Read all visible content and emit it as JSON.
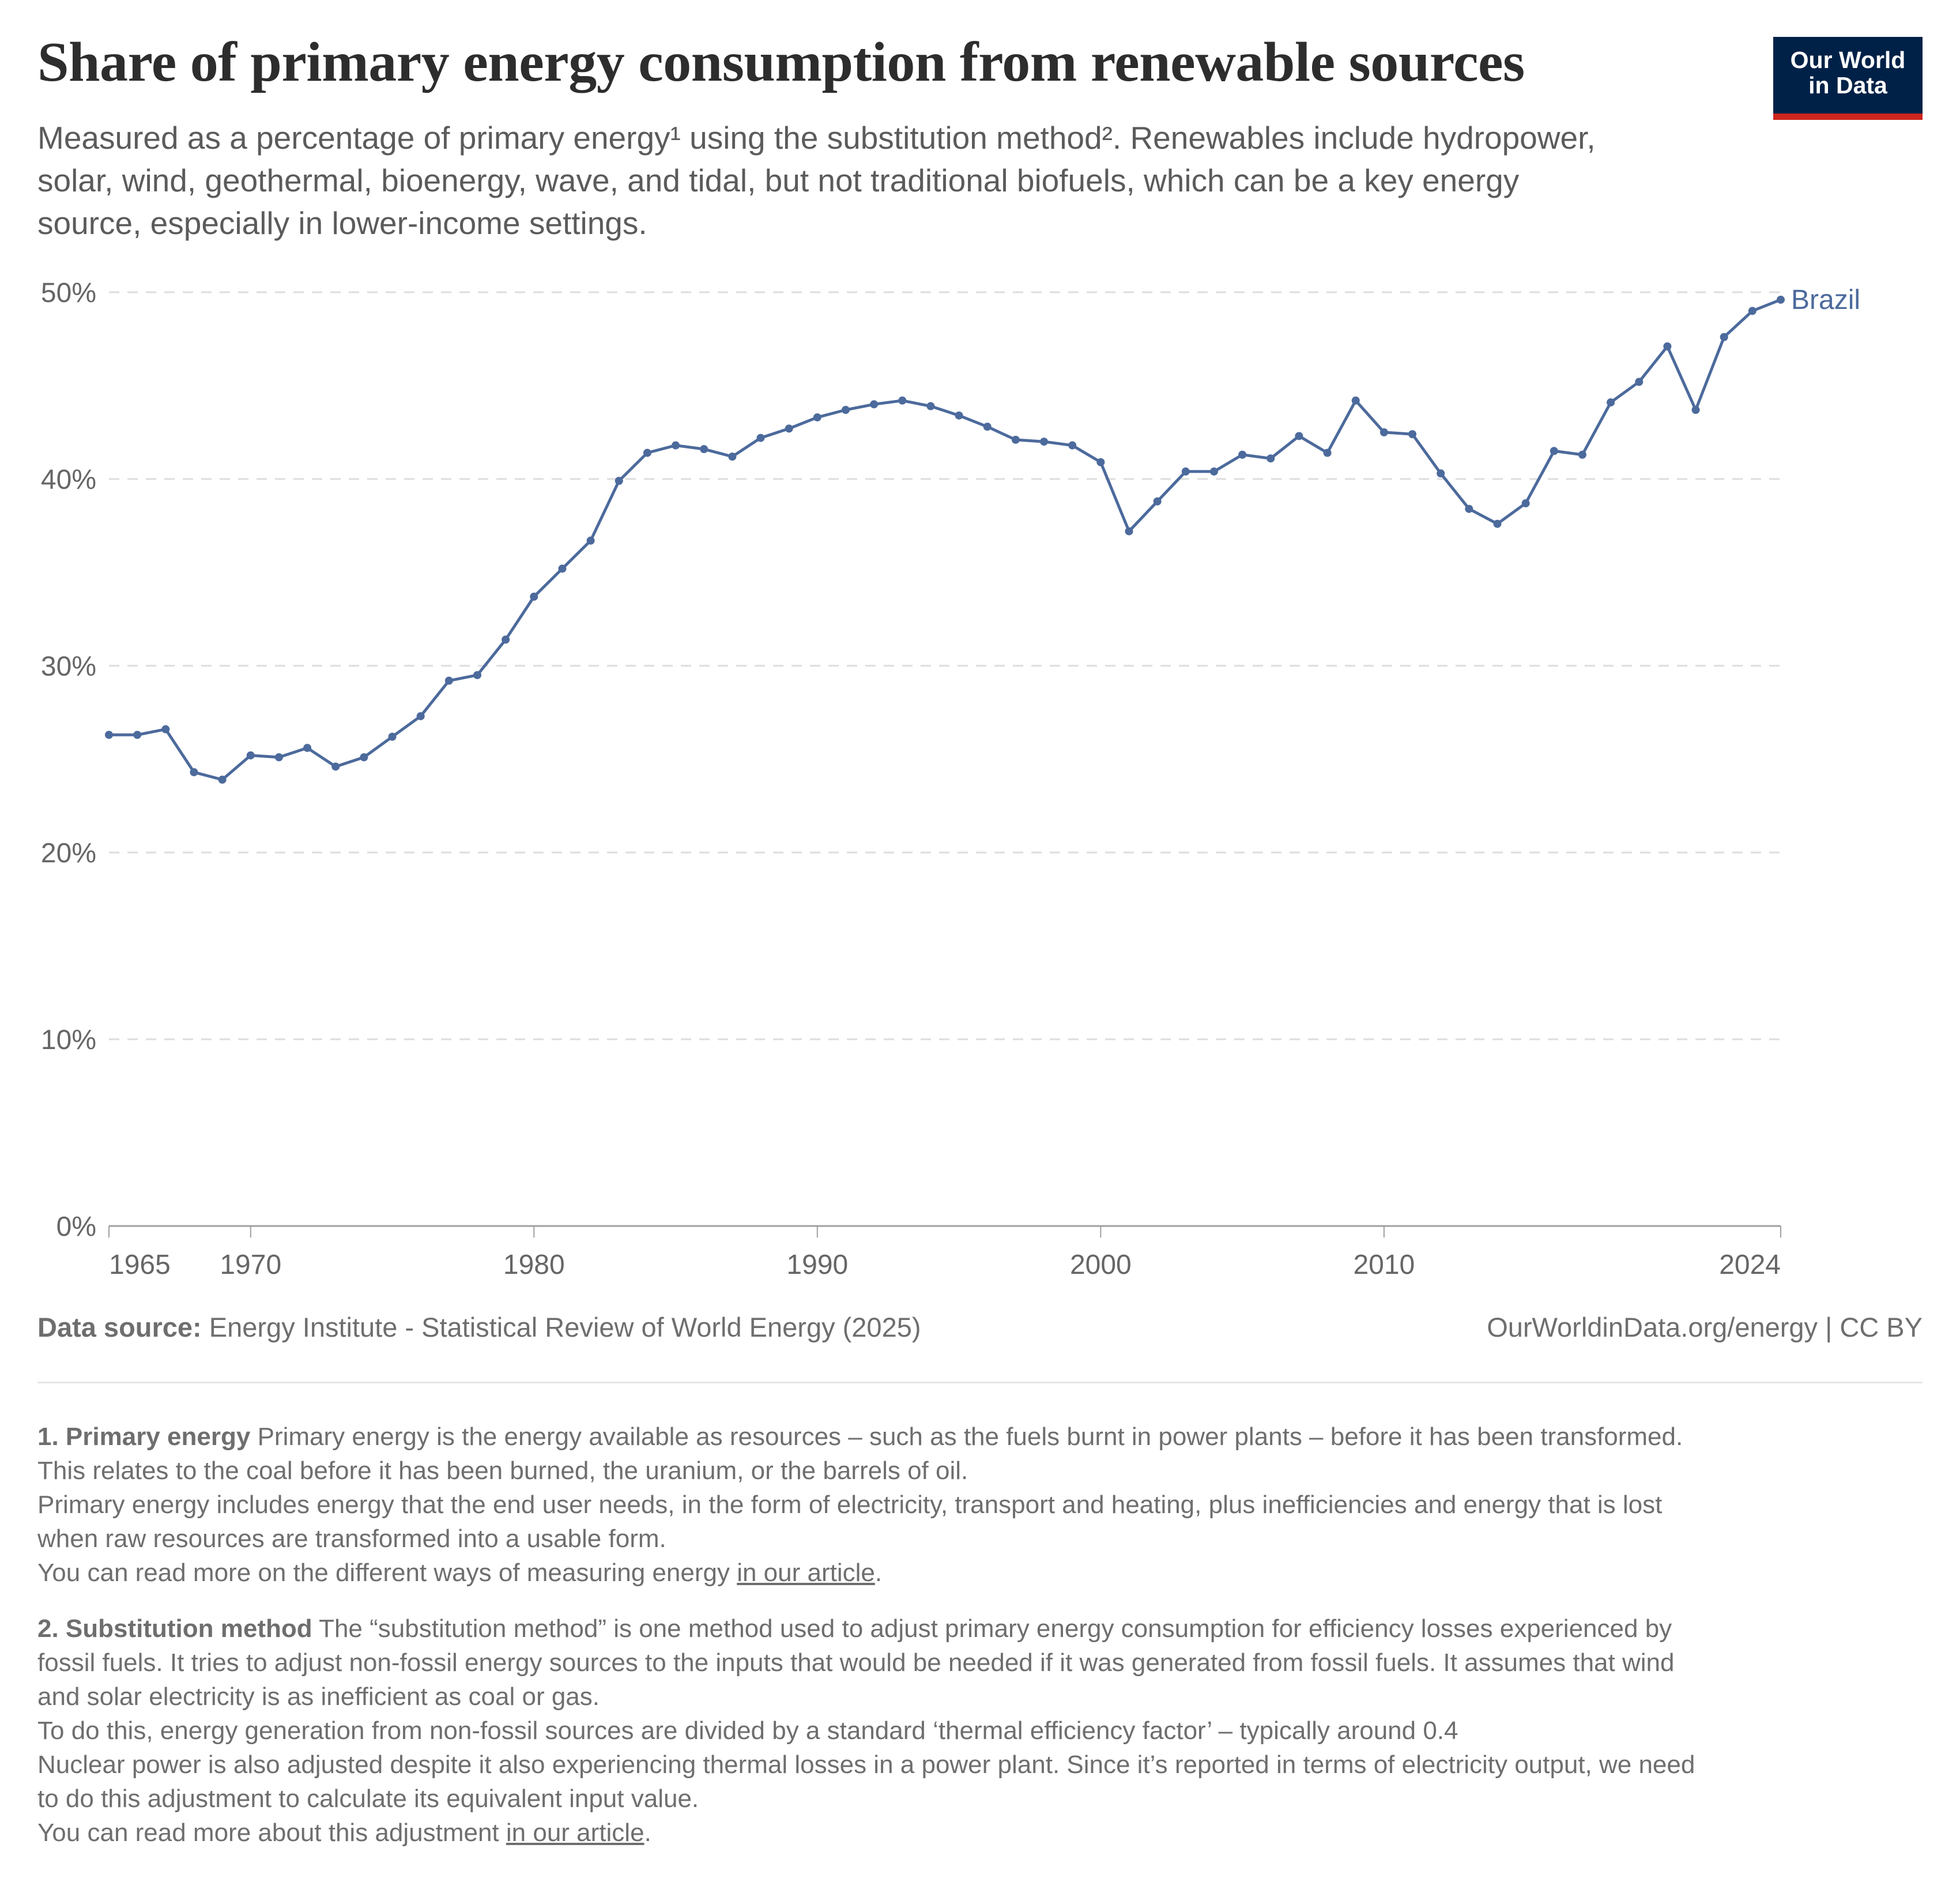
{
  "header": {
    "title": "Share of primary energy consumption from renewable sources",
    "subtitle_lines": [
      "Measured as a percentage of primary energy¹ using the substitution method². Renewables include hydropower,",
      "solar, wind, geothermal, bioenergy, wave, and tidal, but not traditional biofuels, which can be a key energy",
      "source, especially in lower-income settings."
    ],
    "logo_line1": "Our World",
    "logo_line2": "in Data"
  },
  "chart_data": {
    "type": "line",
    "title": "Share of primary energy consumption from renewable sources",
    "xlabel": "",
    "ylabel": "",
    "xlim": [
      1965,
      2024
    ],
    "ylim": [
      0,
      50
    ],
    "grid": true,
    "y_ticks": [
      0,
      10,
      20,
      30,
      40,
      50
    ],
    "y_tick_labels": [
      "0%",
      "10%",
      "20%",
      "30%",
      "40%",
      "50%"
    ],
    "x_ticks": [
      1965,
      1970,
      1980,
      1990,
      2000,
      2010,
      2024
    ],
    "x_tick_labels": [
      "1965",
      "1970",
      "1980",
      "1990",
      "2000",
      "2010",
      "2024"
    ],
    "legend": "end-of-line label",
    "series": [
      {
        "name": "Brazil",
        "color": "#4c6a9c",
        "x": [
          1965,
          1966,
          1967,
          1968,
          1969,
          1970,
          1971,
          1972,
          1973,
          1974,
          1975,
          1976,
          1977,
          1978,
          1979,
          1980,
          1981,
          1982,
          1983,
          1984,
          1985,
          1986,
          1987,
          1988,
          1989,
          1990,
          1991,
          1992,
          1993,
          1994,
          1995,
          1996,
          1997,
          1998,
          1999,
          2000,
          2001,
          2002,
          2003,
          2004,
          2005,
          2006,
          2007,
          2008,
          2009,
          2010,
          2011,
          2012,
          2013,
          2014,
          2015,
          2016,
          2017,
          2018,
          2019,
          2020,
          2021,
          2022,
          2023,
          2024
        ],
        "values": [
          26.3,
          26.3,
          26.6,
          24.3,
          23.9,
          25.2,
          25.1,
          25.6,
          24.6,
          25.1,
          26.2,
          27.3,
          29.2,
          29.5,
          31.4,
          33.7,
          35.2,
          36.7,
          39.9,
          41.4,
          41.8,
          41.6,
          41.2,
          42.2,
          42.7,
          43.3,
          43.7,
          44.0,
          44.2,
          43.9,
          43.4,
          42.8,
          42.1,
          42.0,
          41.8,
          40.9,
          37.2,
          38.8,
          40.4,
          40.4,
          41.3,
          41.1,
          42.3,
          41.4,
          44.2,
          42.5,
          42.4,
          40.3,
          38.4,
          37.6,
          38.7,
          41.5,
          41.3,
          44.1,
          45.2,
          47.1,
          43.7,
          47.6,
          49.0,
          49.6
        ]
      }
    ]
  },
  "footer": {
    "source_label": "Data source:",
    "source_text": "Energy Institute - Statistical Review of World Energy (2025)",
    "credit": "OurWorldinData.org/energy | CC BY"
  },
  "notes": [
    {
      "heading": "1. Primary energy",
      "lines": [
        "Primary energy is the energy available as resources – such as the fuels burnt in power plants – before it has been transformed.",
        "This relates to the coal before it has been burned, the uranium, or the barrels of oil.",
        "Primary energy includes energy that the end user needs, in the form of electricity, transport and heating, plus inefficiencies and energy that is lost",
        "when raw resources are transformed into a usable form."
      ],
      "last_prefix": "You can read more on the different ways of measuring energy ",
      "link": "in our article",
      "last_suffix": "."
    },
    {
      "heading": "2. Substitution method",
      "lines": [
        "The “substitution method” is one method used to adjust primary energy consumption for efficiency losses experienced by",
        "fossil fuels. It tries to adjust non-fossil energy sources to the inputs that would be needed if it was generated from fossil fuels. It assumes that wind",
        "and solar electricity is as inefficient as coal or gas.",
        "To do this, energy generation from non-fossil sources are divided by a standard ‘thermal efficiency factor’ – typically around 0.4",
        "Nuclear power is also adjusted despite it also experiencing thermal losses in a power plant. Since it’s reported in terms of electricity output, we need",
        "to do this adjustment to calculate its equivalent input value."
      ],
      "last_prefix": "You can read more about this adjustment ",
      "link": "in our article",
      "last_suffix": "."
    }
  ]
}
